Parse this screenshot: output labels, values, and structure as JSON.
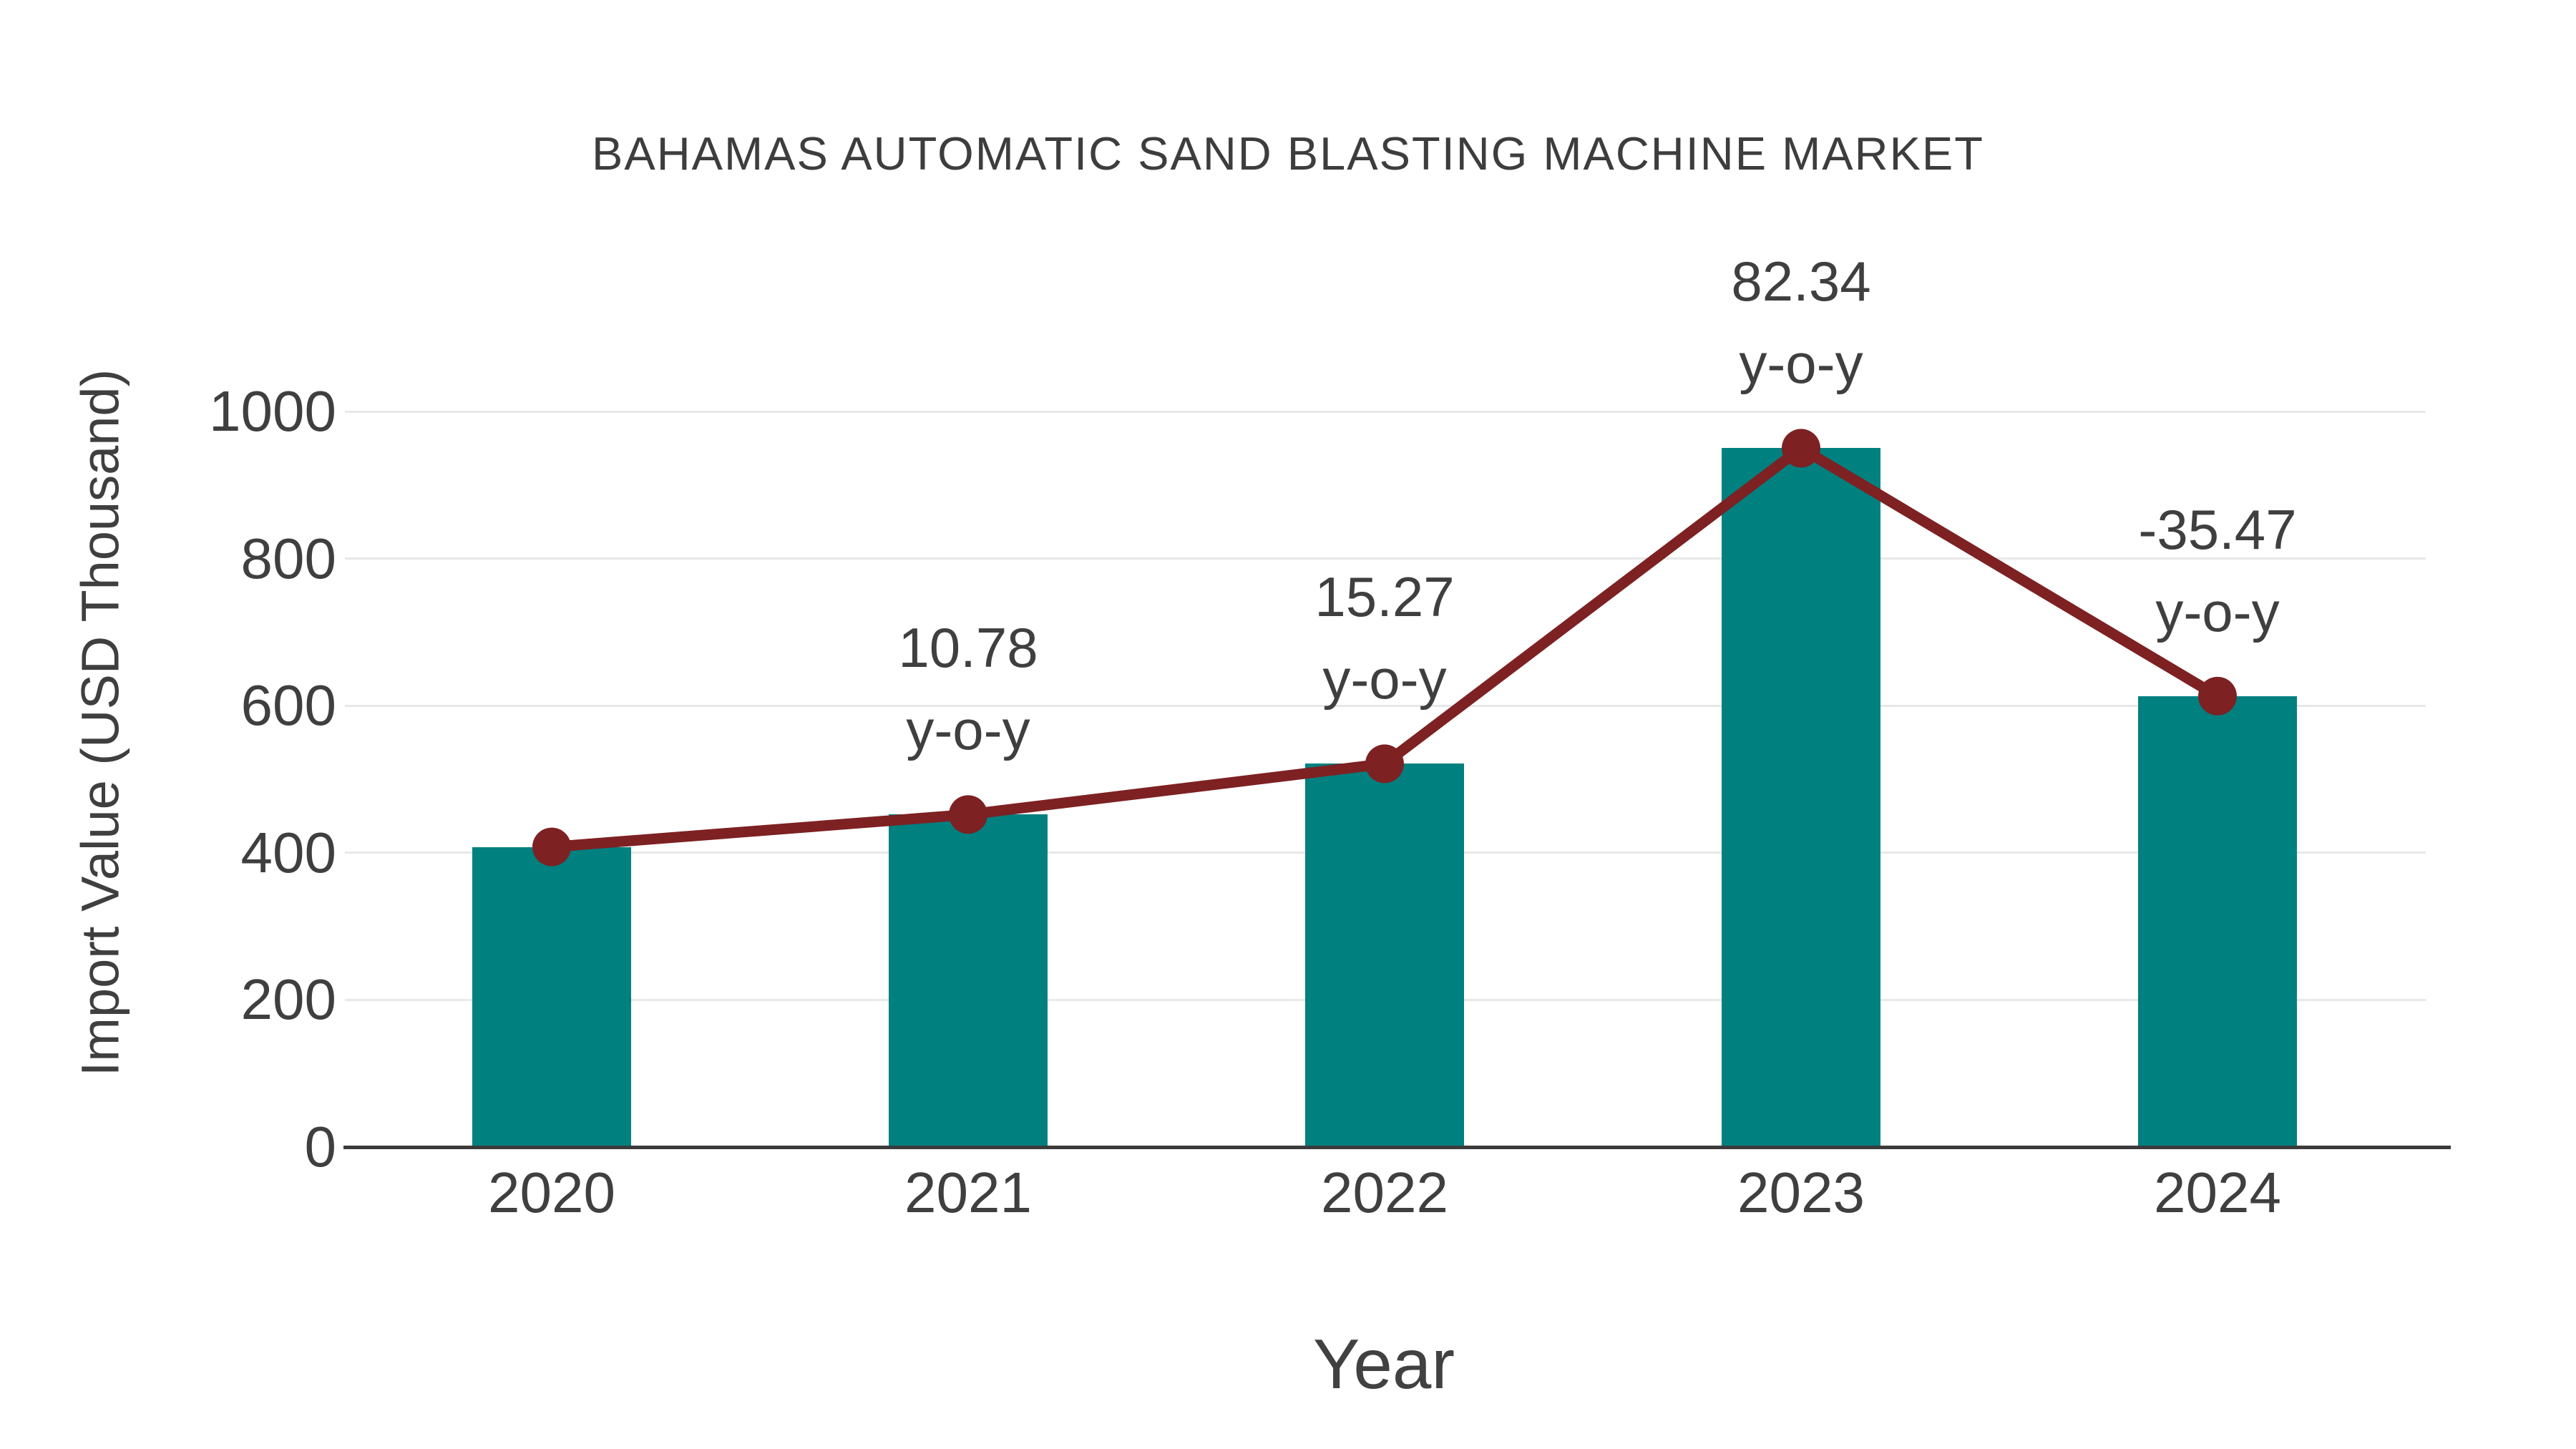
{
  "title": "BAHAMAS AUTOMATIC SAND BLASTING MACHINE MARKET",
  "chart_data": {
    "type": "bar",
    "title": "BAHAMAS AUTOMATIC SAND BLASTING MACHINE MARKET",
    "categories": [
      "2020",
      "2021",
      "2022",
      "2023",
      "2024"
    ],
    "series": [
      {
        "name": "import-value-bars",
        "type": "bar",
        "values": [
          408,
          452,
          521,
          950,
          613
        ],
        "color": "#018080"
      },
      {
        "name": "import-value-trend-line",
        "type": "line",
        "values": [
          408,
          452,
          521,
          950,
          613
        ],
        "color": "#7d2123"
      }
    ],
    "point_labels": [
      null,
      "10.78",
      "15.27",
      "82.34",
      "-35.47"
    ],
    "point_label_suffix": "y-o-y",
    "xlabel": "Year",
    "ylabel": "Import Value (USD Thousand)",
    "yticks": [
      0,
      200,
      400,
      600,
      800,
      1000
    ],
    "ylim": [
      0,
      1000
    ],
    "grid": "horizontal-only",
    "legend": "none"
  },
  "colors": {
    "bar": "#018080",
    "line": "#7d2123",
    "marker": "#7d2123",
    "gridline": "#e8e8e8",
    "axis_line": "#3b3b3b",
    "text": "#3f3f3f",
    "title_text": "#3d3d3d"
  }
}
